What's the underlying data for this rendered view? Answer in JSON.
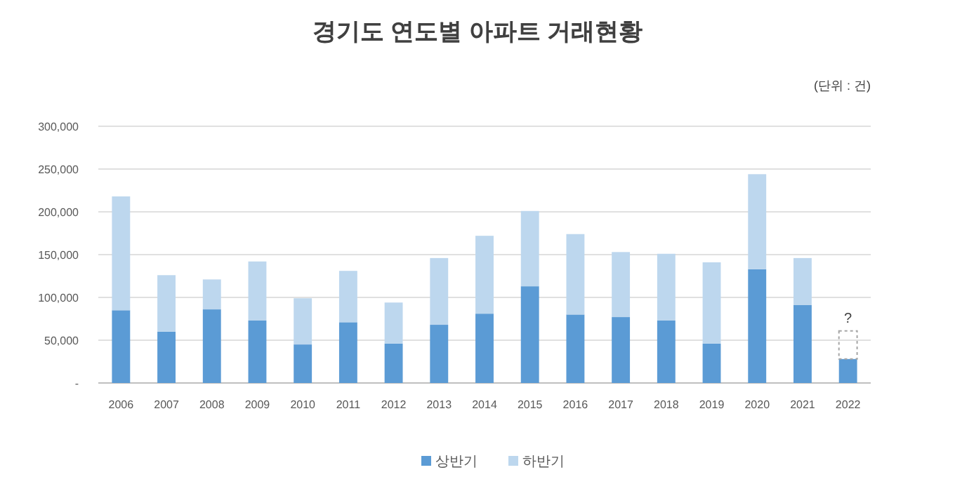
{
  "chart_data": {
    "type": "bar",
    "stacked": true,
    "title": "경기도 연도별 아파트 거래현황",
    "annotations": [
      "(단위 : 건)",
      "?"
    ],
    "categories": [
      "2006",
      "2007",
      "2008",
      "2009",
      "2010",
      "2011",
      "2012",
      "2013",
      "2014",
      "2015",
      "2016",
      "2017",
      "2018",
      "2019",
      "2020",
      "2021",
      "2022"
    ],
    "series": [
      {
        "name": "상반기",
        "color": "#5b9bd5",
        "values": [
          85000,
          60000,
          86000,
          73000,
          45000,
          71000,
          46000,
          68000,
          81000,
          113000,
          80000,
          77000,
          73000,
          46000,
          133000,
          91000,
          28000
        ]
      },
      {
        "name": "하반기",
        "color": "#bdd7ee",
        "values": [
          133000,
          66000,
          35000,
          69000,
          54000,
          60000,
          48000,
          78000,
          91000,
          88000,
          94000,
          76000,
          78000,
          95000,
          111000,
          55000,
          null
        ]
      }
    ],
    "ylim": [
      0,
      300000
    ],
    "yticks": [
      {
        "value": 0,
        "label": "-"
      },
      {
        "value": 50000,
        "label": "50,000"
      },
      {
        "value": 100000,
        "label": "100,000"
      },
      {
        "value": 150000,
        "label": "150,000"
      },
      {
        "value": 200000,
        "label": "200,000"
      },
      {
        "value": 250000,
        "label": "250,000"
      },
      {
        "value": 300000,
        "label": "300,000"
      }
    ],
    "grid": "y",
    "legend": "bottom"
  }
}
